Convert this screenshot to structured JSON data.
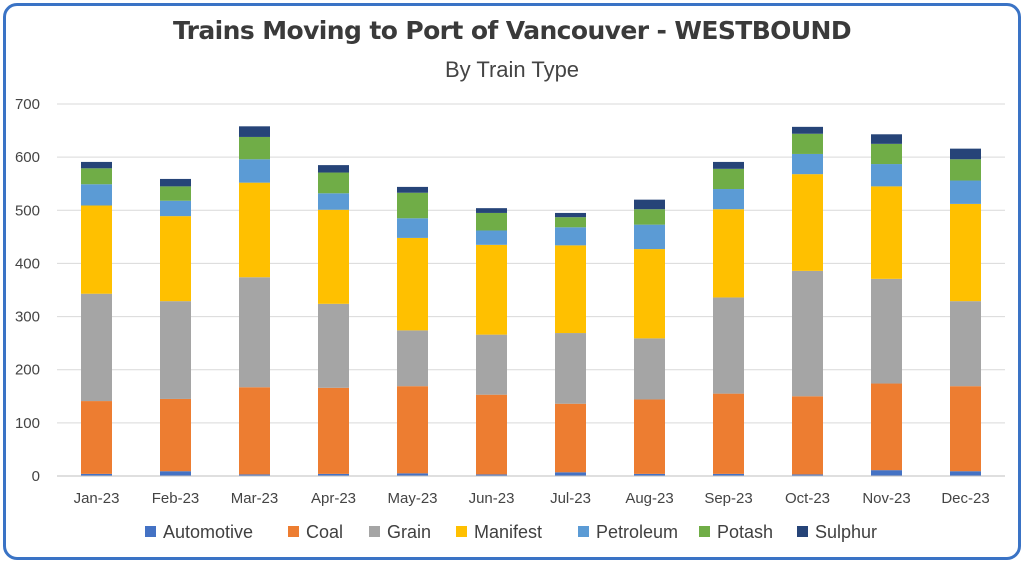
{
  "chart_data": {
    "type": "bar",
    "stacked": true,
    "title": "Trains Moving to Port of Vancouver - WESTBOUND",
    "subtitle": "By Train Type",
    "xlabel": "",
    "ylabel": "",
    "ylim": [
      0,
      700
    ],
    "yticks": [
      "0",
      "100",
      "200",
      "300",
      "400",
      "500",
      "600",
      "700"
    ],
    "grid": true,
    "legend_position": "bottom",
    "categories": [
      "Jan-23",
      "Feb-23",
      "Mar-23",
      "Apr-23",
      "May-23",
      "Jun-23",
      "Jul-23",
      "Aug-23",
      "Sep-23",
      "Oct-23",
      "Nov-23",
      "Dec-23"
    ],
    "series": [
      {
        "name": "Automotive",
        "color": "#4472c4",
        "values": [
          4,
          9,
          3,
          4,
          5,
          3,
          7,
          4,
          4,
          3,
          11,
          9
        ]
      },
      {
        "name": "Coal",
        "color": "#ed7d31",
        "values": [
          137,
          136,
          164,
          162,
          164,
          150,
          129,
          140,
          151,
          147,
          163,
          160
        ]
      },
      {
        "name": "Grain",
        "color": "#a5a5a5",
        "values": [
          202,
          184,
          207,
          158,
          105,
          113,
          133,
          115,
          181,
          236,
          197,
          160
        ]
      },
      {
        "name": "Manifest",
        "color": "#ffc000",
        "values": [
          166,
          160,
          178,
          177,
          174,
          169,
          165,
          168,
          166,
          182,
          174,
          183
        ]
      },
      {
        "name": "Petroleum",
        "color": "#5b9bd5",
        "values": [
          40,
          29,
          44,
          31,
          37,
          27,
          34,
          46,
          38,
          38,
          42,
          44
        ]
      },
      {
        "name": "Potash",
        "color": "#70ad47",
        "values": [
          30,
          27,
          42,
          39,
          48,
          33,
          19,
          29,
          38,
          38,
          38,
          40
        ]
      },
      {
        "name": "Sulphur",
        "color": "#264478",
        "values": [
          12,
          14,
          20,
          14,
          11,
          9,
          8,
          18,
          13,
          13,
          18,
          20
        ]
      }
    ]
  }
}
